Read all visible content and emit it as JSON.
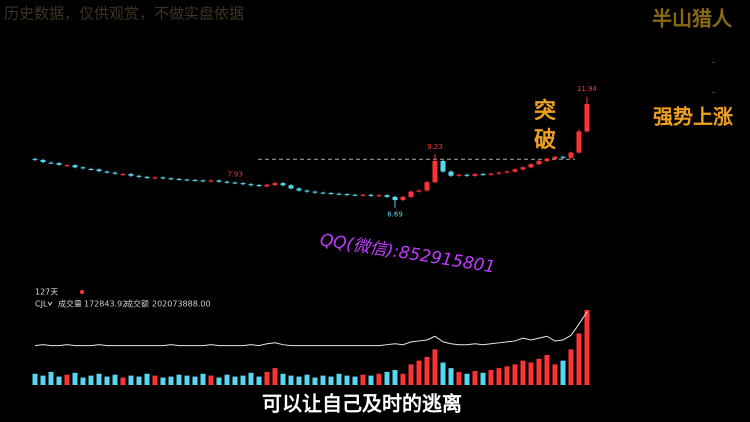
{
  "chart_data": {
    "type": "candlestick",
    "open": [
      9.0,
      8.95,
      8.82,
      8.8,
      8.68,
      8.7,
      8.6,
      8.52,
      8.5,
      8.4,
      8.35,
      8.25,
      8.28,
      8.2,
      8.15,
      8.08,
      8.12,
      8.08,
      8.05,
      8.02,
      8.0,
      7.98,
      7.94,
      7.98,
      7.92,
      7.88,
      7.85,
      7.8,
      7.76,
      7.7,
      7.76,
      7.85,
      7.75,
      7.6,
      7.5,
      7.45,
      7.4,
      7.38,
      7.35,
      7.33,
      7.3,
      7.26,
      7.3,
      7.24,
      7.28,
      7.2,
      7.05,
      7.2,
      7.45,
      7.5,
      7.9,
      8.9,
      8.4,
      8.2,
      8.25,
      8.2,
      8.28,
      8.25,
      8.3,
      8.35,
      8.4,
      8.5,
      8.6,
      8.75,
      8.9,
      9.0,
      9.1,
      9.05,
      9.3,
      10.3
    ],
    "high": [
      9.05,
      9.0,
      8.88,
      8.85,
      8.75,
      8.75,
      8.65,
      8.58,
      8.55,
      8.45,
      8.4,
      8.33,
      8.33,
      8.25,
      8.2,
      8.17,
      8.17,
      8.13,
      8.1,
      8.07,
      8.05,
      8.03,
      8.03,
      8.03,
      7.97,
      7.93,
      7.9,
      7.85,
      7.81,
      7.83,
      7.92,
      7.9,
      7.8,
      7.65,
      7.55,
      7.5,
      7.45,
      7.43,
      7.4,
      7.38,
      7.35,
      7.35,
      7.35,
      7.33,
      7.33,
      7.25,
      7.25,
      7.5,
      7.55,
      7.95,
      9.23,
      8.95,
      8.45,
      8.3,
      8.3,
      8.33,
      8.33,
      8.35,
      8.4,
      8.45,
      8.55,
      8.65,
      8.8,
      8.95,
      9.05,
      9.15,
      9.15,
      9.35,
      10.4,
      11.94
    ],
    "low": [
      8.9,
      8.8,
      8.75,
      8.67,
      8.63,
      8.55,
      8.5,
      8.45,
      8.37,
      8.3,
      8.25,
      8.2,
      8.15,
      8.1,
      8.05,
      8.03,
      8.03,
      8.0,
      7.97,
      7.95,
      7.93,
      7.9,
      7.89,
      7.87,
      7.83,
      7.8,
      7.75,
      7.7,
      7.67,
      7.65,
      7.71,
      7.7,
      7.55,
      7.45,
      7.4,
      7.35,
      7.33,
      7.3,
      7.28,
      7.25,
      7.23,
      7.21,
      7.2,
      7.19,
      7.15,
      6.69,
      7.0,
      7.15,
      7.4,
      7.45,
      7.85,
      8.35,
      8.15,
      8.15,
      8.15,
      8.15,
      8.2,
      8.2,
      8.25,
      8.3,
      8.35,
      8.45,
      8.55,
      8.7,
      8.85,
      8.95,
      9.0,
      9.0,
      9.25,
      10.25
    ],
    "close": [
      8.95,
      8.85,
      8.8,
      8.72,
      8.7,
      8.6,
      8.55,
      8.5,
      8.42,
      8.35,
      8.3,
      8.28,
      8.2,
      8.15,
      8.1,
      8.12,
      8.08,
      8.05,
      8.02,
      8.0,
      7.98,
      7.95,
      7.98,
      7.92,
      7.88,
      7.85,
      7.8,
      7.75,
      7.72,
      7.78,
      7.85,
      7.75,
      7.6,
      7.5,
      7.45,
      7.4,
      7.38,
      7.35,
      7.33,
      7.3,
      7.28,
      7.3,
      7.25,
      7.28,
      7.2,
      7.05,
      7.2,
      7.45,
      7.5,
      7.9,
      8.9,
      8.4,
      8.2,
      8.25,
      8.2,
      8.28,
      8.25,
      8.3,
      8.35,
      8.4,
      8.5,
      8.6,
      8.75,
      8.9,
      9.0,
      9.1,
      9.05,
      9.3,
      10.3,
      11.6
    ],
    "up_color": "#ff3333",
    "down_color": "#55d8f2",
    "ylim": [
      6.2,
      12.5
    ],
    "reference_line": 8.98,
    "volume": {
      "values": [
        12,
        10,
        14,
        9,
        11,
        13,
        8,
        10,
        12,
        9,
        11,
        8,
        10,
        9,
        12,
        10,
        8,
        9,
        11,
        10,
        9,
        12,
        10,
        8,
        11,
        9,
        10,
        13,
        9,
        14,
        18,
        12,
        10,
        9,
        11,
        8,
        10,
        9,
        12,
        10,
        9,
        11,
        10,
        12,
        14,
        16,
        12,
        22,
        26,
        30,
        38,
        24,
        18,
        14,
        12,
        15,
        13,
        16,
        18,
        20,
        22,
        26,
        24,
        28,
        32,
        22,
        26,
        38,
        55,
        80
      ],
      "line": [
        42,
        43,
        42,
        42,
        43,
        42,
        42,
        42,
        43,
        42,
        42,
        42,
        42,
        42,
        42,
        42,
        42,
        43,
        42,
        42,
        42,
        42,
        43,
        42,
        42,
        42,
        42,
        43,
        42,
        44,
        45,
        43,
        42,
        42,
        42,
        42,
        42,
        42,
        42,
        42,
        42,
        42,
        42,
        42,
        43,
        44,
        43,
        46,
        47,
        48,
        52,
        46,
        44,
        43,
        43,
        44,
        43,
        44,
        45,
        46,
        47,
        50,
        48,
        50,
        52,
        47,
        48,
        53,
        65,
        78
      ],
      "line_color": "#e8e8e8",
      "ylim": [
        0,
        80
      ]
    },
    "annotations": {
      "disclaimer": "历史数据，仅供观赏，不做实盘依据",
      "brand": "半山猎人",
      "breakout_1": "突",
      "breakout_2": "破",
      "trend": "强势上涨",
      "watermark": "QQ(微信):852915801",
      "subtitle": "可以让自己及时的逃离",
      "period": "127天",
      "indicator": "CJL",
      "volume_label": "成交量",
      "volume_value": "172843.92",
      "amount_label": "成交额",
      "amount_value": "202073888.00"
    }
  }
}
